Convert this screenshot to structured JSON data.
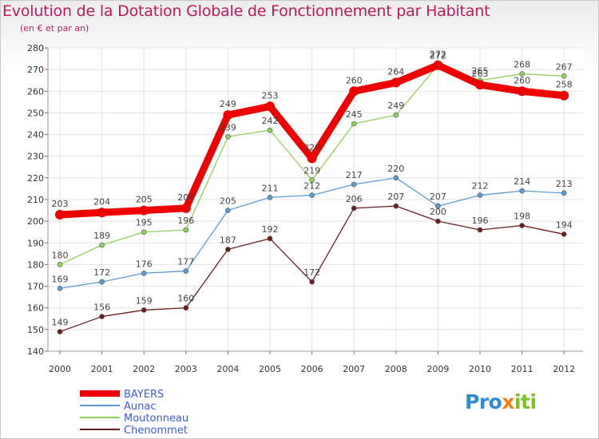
{
  "title": "Evolution de la Dotation Globale de Fonctionnement par Habitant",
  "subtitle": "(en € et par an)",
  "logo": {
    "part1": "Pro",
    "part2": "x",
    "part3": "iti"
  },
  "chart_data": {
    "type": "line",
    "title": "Evolution de la Dotation Globale de Fonctionnement par Habitant",
    "ylabel": "(en € et par an)",
    "xlabel": "",
    "ylim": [
      140,
      280
    ],
    "yticks": [
      140,
      150,
      160,
      170,
      180,
      190,
      200,
      210,
      220,
      230,
      240,
      250,
      260,
      270,
      280
    ],
    "categories": [
      "2000",
      "2001",
      "2002",
      "2003",
      "2004",
      "2005",
      "2006",
      "2007",
      "2008",
      "2009",
      "2010",
      "2011",
      "2012"
    ],
    "legend_position": "bottom-left",
    "series": [
      {
        "name": "BAYERS",
        "color": "#ee0000",
        "emphasis": true,
        "values": [
          203,
          204,
          205,
          206,
          249,
          253,
          229,
          260,
          264,
          272,
          263,
          260,
          258
        ],
        "labels": [
          "203",
          "204",
          "205",
          "206",
          "249",
          "253",
          "229",
          "260",
          "264",
          "272",
          "263",
          "260",
          "258"
        ]
      },
      {
        "name": "Aunac",
        "color": "#5b9bd5",
        "emphasis": false,
        "values": [
          169,
          172,
          176,
          177,
          205,
          211,
          212,
          217,
          220,
          207,
          212,
          214,
          213
        ],
        "labels": [
          "169",
          "172",
          "176",
          "177",
          "205",
          "211",
          "212",
          "217",
          "220",
          "207",
          "212",
          "214",
          "213"
        ]
      },
      {
        "name": "Moutonneau",
        "color": "#8fd15a",
        "emphasis": false,
        "values": [
          180,
          189,
          195,
          196,
          239,
          242,
          219,
          245,
          249,
          272,
          265,
          268,
          267
        ],
        "labels": [
          "180",
          "189",
          "195",
          "196",
          "239",
          "242",
          "219",
          "245",
          "249",
          "272",
          "265",
          "268",
          "267"
        ]
      },
      {
        "name": "Chenommet",
        "color": "#6b1e1e",
        "emphasis": false,
        "values": [
          149,
          156,
          159,
          160,
          187,
          192,
          172,
          206,
          207,
          200,
          196,
          198,
          194
        ],
        "labels": [
          "149",
          "156",
          "159",
          "160",
          "187",
          "192",
          "172",
          "206",
          "207",
          "200",
          "196",
          "198",
          "194"
        ]
      }
    ]
  }
}
